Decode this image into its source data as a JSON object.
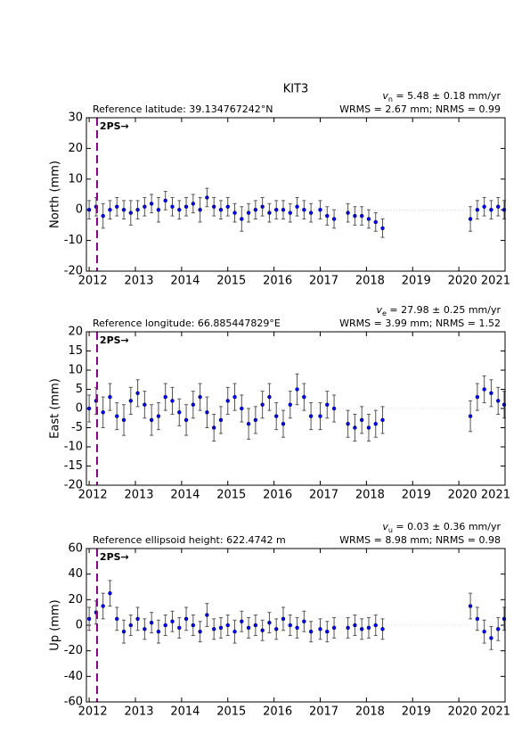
{
  "title": "KIT3",
  "chart_data": [
    {
      "type": "scatter",
      "ylabel": "North (mm)",
      "reference": "Reference latitude: 39.134767242°N",
      "velocity": {
        "symbol": "v",
        "subscript": "n",
        "text": " = 5.48 ± 0.18 mm/yr"
      },
      "stats": "WRMS = 2.67 mm; NRMS = 0.99",
      "event": {
        "x": 2012.17,
        "label": "2PS→"
      },
      "event_color": "#800080",
      "color": "#0000ff",
      "error_color": "#555555",
      "xlim": [
        2011.94,
        2021.0
      ],
      "xticks": [
        2012,
        2013,
        2014,
        2015,
        2016,
        2017,
        2018,
        2019,
        2020,
        2021
      ],
      "ylim": [
        -20,
        30
      ],
      "yticks": [
        -20,
        -10,
        0,
        10,
        20,
        30
      ],
      "x": [
        2012.0,
        2012.15,
        2012.3,
        2012.45,
        2012.6,
        2012.75,
        2012.9,
        2013.05,
        2013.2,
        2013.35,
        2013.5,
        2013.65,
        2013.8,
        2013.95,
        2014.1,
        2014.25,
        2014.4,
        2014.55,
        2014.7,
        2014.85,
        2015.0,
        2015.15,
        2015.3,
        2015.45,
        2015.6,
        2015.75,
        2015.9,
        2016.05,
        2016.2,
        2016.35,
        2016.5,
        2016.65,
        2016.8,
        2017.0,
        2017.15,
        2017.3,
        2017.6,
        2017.75,
        2017.9,
        2018.05,
        2018.2,
        2018.35,
        2020.25,
        2020.4,
        2020.55,
        2020.7,
        2020.85,
        2020.98
      ],
      "values": [
        0,
        1,
        -2,
        0,
        1,
        0,
        -1,
        0,
        1,
        2,
        0,
        3,
        1,
        0,
        1,
        2,
        0,
        4,
        1,
        0,
        1,
        -1,
        -3,
        -1,
        0,
        1,
        -1,
        0,
        0,
        -1,
        1,
        0,
        -1,
        0,
        -2,
        -3,
        -1,
        -2,
        -2,
        -3,
        -4,
        -6,
        -3,
        0,
        1,
        0,
        1,
        0
      ],
      "errors": [
        3,
        3,
        4,
        3,
        3,
        3,
        4,
        3,
        3,
        3,
        4,
        3,
        3,
        3,
        3,
        3,
        4,
        3,
        3,
        3,
        3,
        3,
        4,
        3,
        3,
        3,
        3,
        3,
        3,
        3,
        3,
        3,
        3,
        3,
        3,
        3,
        3,
        3,
        3,
        3,
        3,
        3,
        4,
        3,
        3,
        3,
        3,
        3
      ]
    },
    {
      "type": "scatter",
      "ylabel": "East (mm)",
      "reference": "Reference longitude: 66.885447829°E",
      "velocity": {
        "symbol": "v",
        "subscript": "e",
        "text": " = 27.98 ± 0.25 mm/yr"
      },
      "stats": "WRMS = 3.99 mm; NRMS = 1.52",
      "event": {
        "x": 2012.17,
        "label": "2PS→"
      },
      "event_color": "#800080",
      "color": "#0000ff",
      "error_color": "#555555",
      "xlim": [
        2011.94,
        2021.0
      ],
      "xticks": [
        2012,
        2013,
        2014,
        2015,
        2016,
        2017,
        2018,
        2019,
        2020,
        2021
      ],
      "ylim": [
        -20,
        20
      ],
      "yticks": [
        -20,
        -15,
        -10,
        -5,
        0,
        5,
        10,
        15,
        20
      ],
      "x": [
        2012.0,
        2012.15,
        2012.3,
        2012.45,
        2012.6,
        2012.75,
        2012.9,
        2013.05,
        2013.2,
        2013.35,
        2013.5,
        2013.65,
        2013.8,
        2013.95,
        2014.1,
        2014.25,
        2014.4,
        2014.55,
        2014.7,
        2014.85,
        2015.0,
        2015.15,
        2015.3,
        2015.45,
        2015.6,
        2015.75,
        2015.9,
        2016.05,
        2016.2,
        2016.35,
        2016.5,
        2016.65,
        2016.8,
        2017.0,
        2017.15,
        2017.3,
        2017.6,
        2017.75,
        2017.9,
        2018.05,
        2018.2,
        2018.35,
        2020.25,
        2020.4,
        2020.55,
        2020.7,
        2020.85,
        2020.98
      ],
      "values": [
        0,
        2,
        -1,
        3,
        -2,
        -3,
        2,
        4,
        1,
        -3,
        -2,
        3,
        2,
        -1,
        -3,
        1,
        3,
        -1,
        -5,
        -3,
        2,
        3,
        0,
        -4,
        -3,
        1,
        3,
        -2,
        -4,
        1,
        5,
        3,
        -2,
        -2,
        1,
        0,
        -4,
        -5,
        -3,
        -5,
        -4,
        -3,
        -2,
        3,
        5,
        4,
        2,
        1
      ],
      "errors": [
        3.5,
        3.5,
        4,
        3.5,
        3.5,
        4,
        3.5,
        3.5,
        3.5,
        4,
        3.5,
        3.5,
        3.5,
        3.5,
        4,
        3.5,
        3.5,
        4,
        3.5,
        3.5,
        3.5,
        3.5,
        3.5,
        4,
        3.5,
        3.5,
        3.5,
        3.5,
        3.5,
        3.5,
        4,
        3.5,
        3.5,
        3.5,
        3.5,
        3.5,
        3.5,
        3.5,
        3.5,
        3.5,
        3.5,
        3.5,
        4,
        3.5,
        3.5,
        3.5,
        3.5,
        3.5
      ]
    },
    {
      "type": "scatter",
      "ylabel": "Up (mm)",
      "reference": "Reference ellipsoid height: 622.4742 m",
      "velocity": {
        "symbol": "v",
        "subscript": "u",
        "text": " = 0.03 ± 0.36 mm/yr"
      },
      "stats": "WRMS = 8.98 mm; NRMS = 0.98",
      "event": {
        "x": 2012.17,
        "label": "2PS→"
      },
      "event_color": "#800080",
      "color": "#0000ff",
      "error_color": "#555555",
      "xlim": [
        2011.94,
        2021.0
      ],
      "xticks": [
        2012,
        2013,
        2014,
        2015,
        2016,
        2017,
        2018,
        2019,
        2020,
        2021
      ],
      "ylim": [
        -60,
        60
      ],
      "yticks": [
        -60,
        -40,
        -20,
        0,
        20,
        40,
        60
      ],
      "x": [
        2012.0,
        2012.15,
        2012.3,
        2012.45,
        2012.6,
        2012.75,
        2012.9,
        2013.05,
        2013.2,
        2013.35,
        2013.5,
        2013.65,
        2013.8,
        2013.95,
        2014.1,
        2014.25,
        2014.4,
        2014.55,
        2014.7,
        2014.85,
        2015.0,
        2015.15,
        2015.3,
        2015.45,
        2015.6,
        2015.75,
        2015.9,
        2016.05,
        2016.2,
        2016.35,
        2016.5,
        2016.65,
        2016.8,
        2017.0,
        2017.15,
        2017.3,
        2017.6,
        2017.75,
        2017.9,
        2018.05,
        2018.2,
        2018.35,
        2020.25,
        2020.4,
        2020.55,
        2020.7,
        2020.85,
        2020.98
      ],
      "values": [
        5,
        10,
        15,
        25,
        5,
        -5,
        0,
        5,
        -3,
        2,
        -5,
        0,
        3,
        -2,
        5,
        0,
        -5,
        8,
        -3,
        -2,
        0,
        -5,
        3,
        -2,
        0,
        -4,
        2,
        -3,
        5,
        0,
        -2,
        3,
        -5,
        -3,
        -5,
        -2,
        -2,
        0,
        -3,
        -2,
        0,
        -3,
        15,
        5,
        -5,
        -10,
        -3,
        5
      ],
      "errors": [
        9,
        9,
        10,
        10,
        9,
        9,
        8,
        9,
        8,
        8,
        9,
        8,
        8,
        8,
        9,
        8,
        8,
        9,
        8,
        8,
        8,
        9,
        8,
        8,
        8,
        8,
        8,
        8,
        9,
        8,
        8,
        8,
        8,
        8,
        8,
        8,
        8,
        8,
        8,
        8,
        8,
        8,
        10,
        9,
        9,
        9,
        9,
        9
      ]
    }
  ]
}
